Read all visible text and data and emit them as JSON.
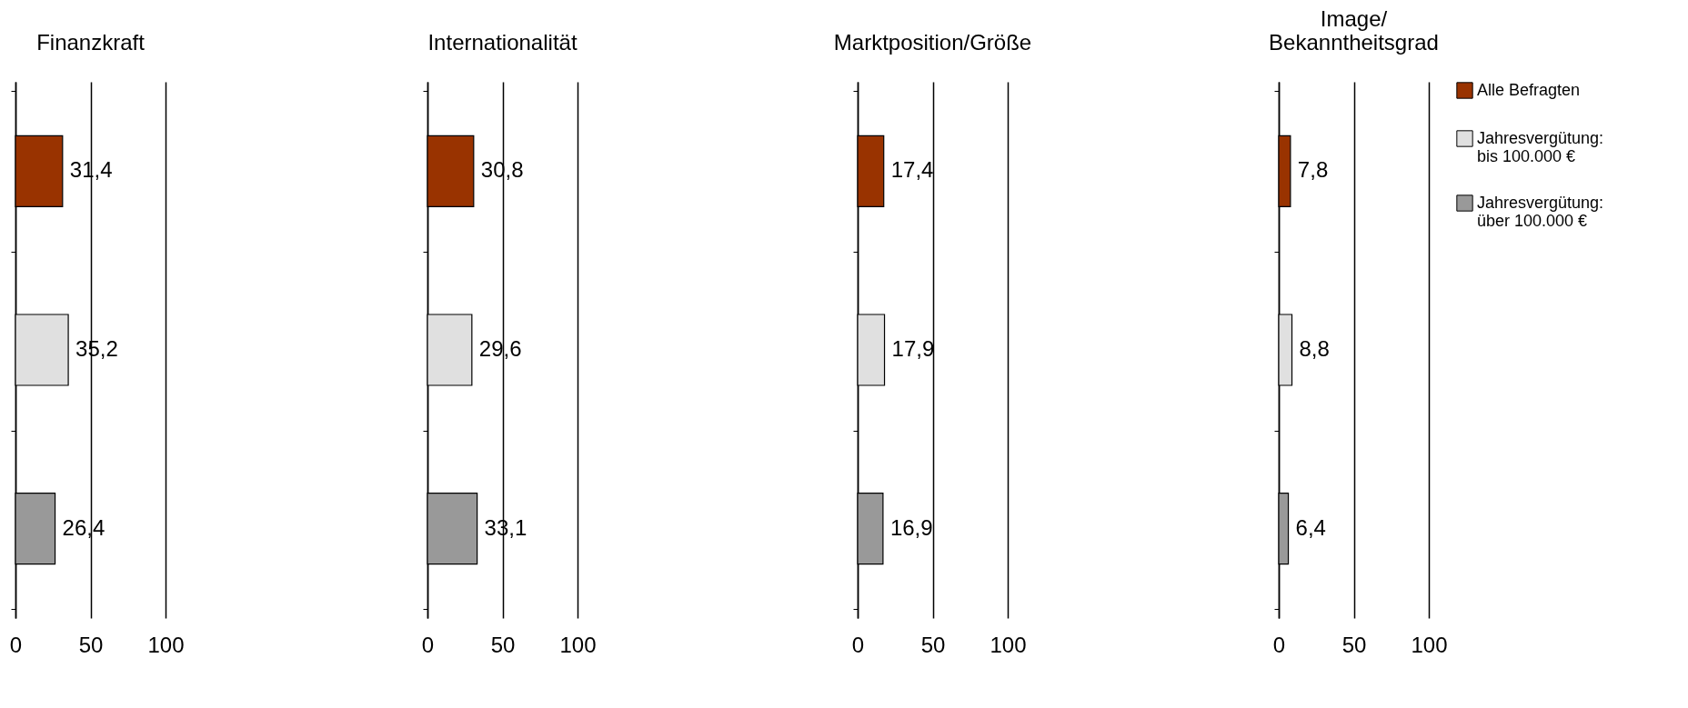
{
  "chart_data": [
    {
      "type": "bar",
      "orientation": "horizontal",
      "title": "Finanzkraft",
      "categories": [
        null
      ],
      "series": [
        {
          "color": "#993300",
          "values": [
            31.4
          ],
          "value_labels": [
            "31,4"
          ]
        },
        {
          "color": "#e0e0e0",
          "values": [
            35.2
          ],
          "value_labels": [
            "35,2"
          ]
        },
        {
          "color": "#999999",
          "values": [
            26.4
          ],
          "value_labels": [
            "26,4"
          ]
        }
      ],
      "xlim": [
        0,
        100
      ],
      "xticks": [
        0,
        50,
        100
      ],
      "grid": "x"
    },
    {
      "type": "bar",
      "orientation": "horizontal",
      "title": "Internationalität",
      "categories": [
        null
      ],
      "series": [
        {
          "color": "#993300",
          "values": [
            30.8
          ],
          "value_labels": [
            "30,8"
          ]
        },
        {
          "color": "#e0e0e0",
          "values": [
            29.6
          ],
          "value_labels": [
            "29,6"
          ]
        },
        {
          "color": "#999999",
          "values": [
            33.1
          ],
          "value_labels": [
            "33,1"
          ]
        }
      ],
      "xlim": [
        0,
        100
      ],
      "xticks": [
        0,
        50,
        100
      ],
      "grid": "x"
    },
    {
      "type": "bar",
      "orientation": "horizontal",
      "title": "Marktposition/Größe",
      "categories": [
        null
      ],
      "series": [
        {
          "color": "#993300",
          "values": [
            17.4
          ],
          "value_labels": [
            "17,4"
          ]
        },
        {
          "color": "#e0e0e0",
          "values": [
            17.9
          ],
          "value_labels": [
            "17,9"
          ]
        },
        {
          "color": "#999999",
          "values": [
            16.9
          ],
          "value_labels": [
            "16,9"
          ]
        }
      ],
      "xlim": [
        0,
        100
      ],
      "xticks": [
        0,
        50,
        100
      ],
      "grid": "x"
    },
    {
      "type": "bar",
      "orientation": "horizontal",
      "title": "Image/\nBekanntheitsgrad",
      "categories": [
        null
      ],
      "series": [
        {
          "name": "Alle Befragten",
          "color": "#993300",
          "values": [
            7.8
          ],
          "value_labels": [
            "7,8"
          ]
        },
        {
          "name": "Jahresvergütung:\nbis 100.000 €",
          "color": "#e0e0e0",
          "values": [
            8.8
          ],
          "value_labels": [
            "8,8"
          ]
        },
        {
          "name": "Jahresvergütung:\nüber 100.000 €",
          "color": "#999999",
          "values": [
            6.4
          ],
          "value_labels": [
            "6,4"
          ]
        }
      ],
      "xlim": [
        0,
        100
      ],
      "xticks": [
        0,
        50,
        100
      ],
      "grid": "x",
      "legend": "right"
    }
  ]
}
